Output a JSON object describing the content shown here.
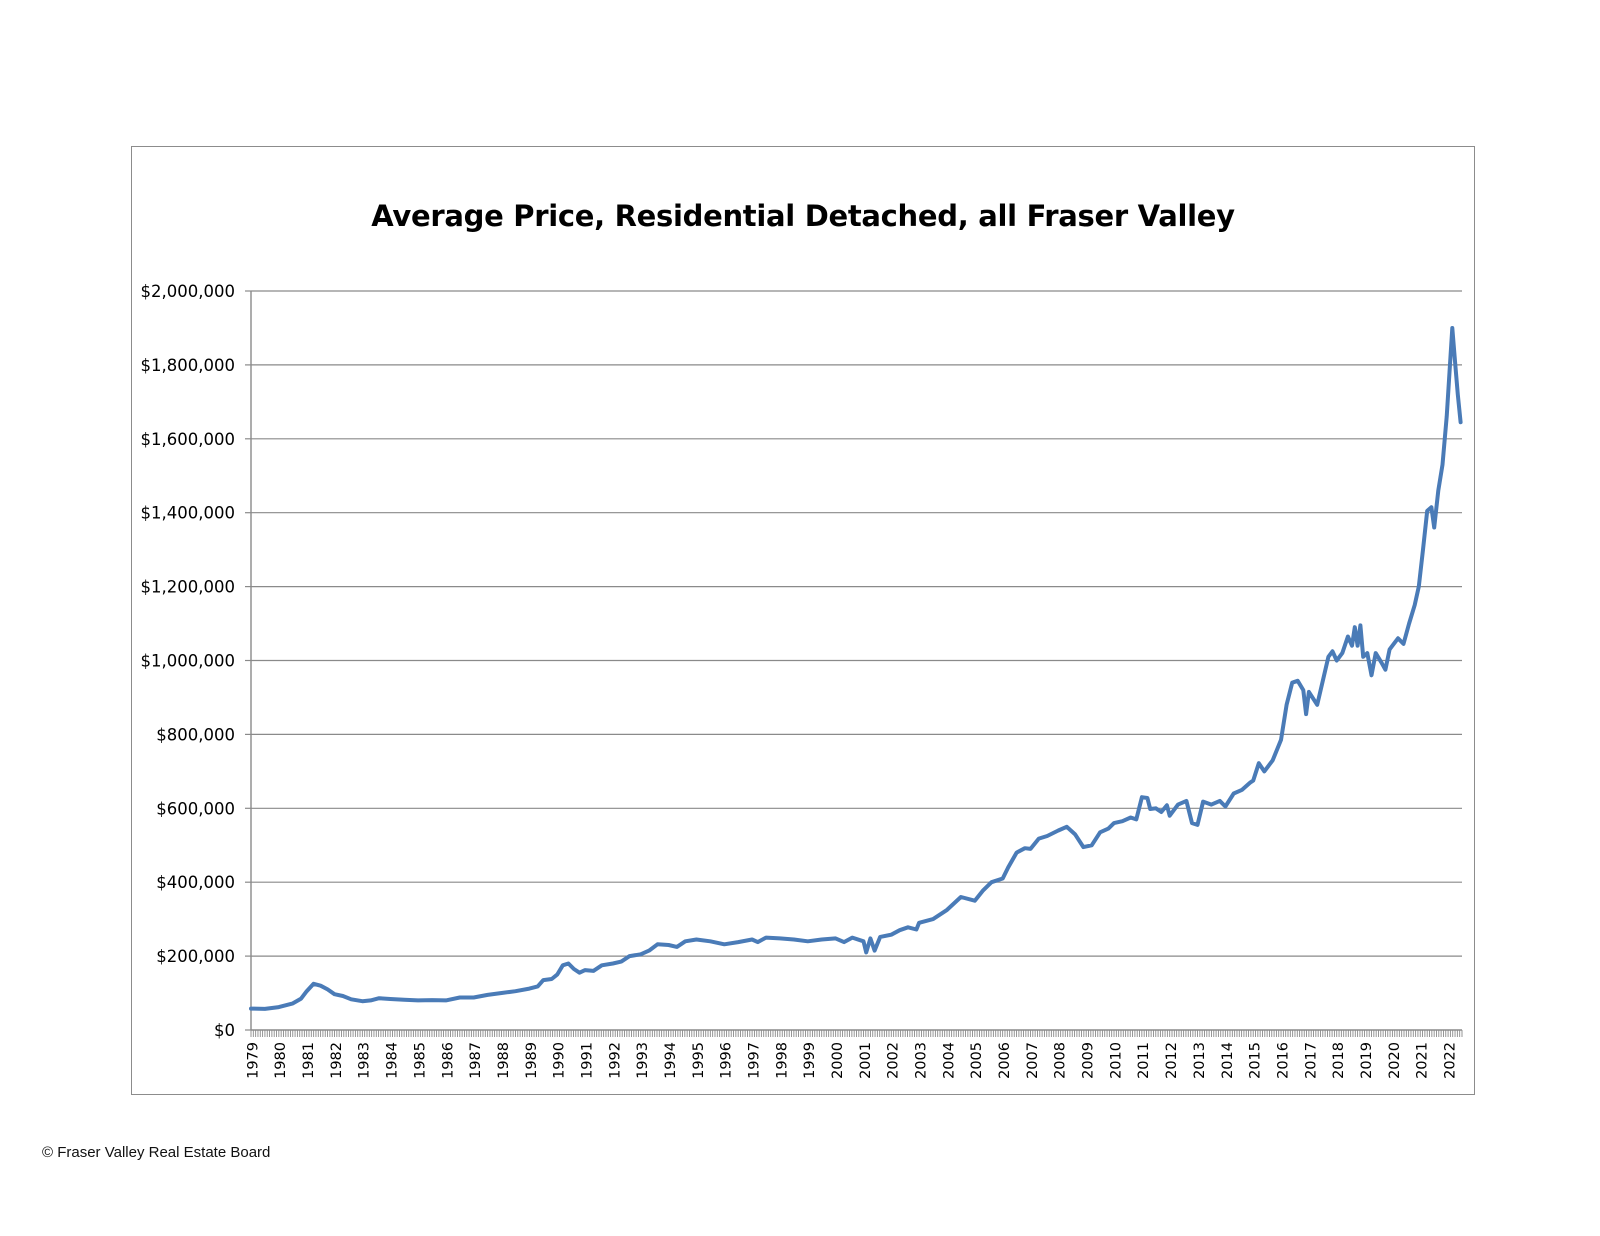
{
  "chart_data": {
    "type": "line",
    "title": "Average Price, Residential Detached, all Fraser Valley",
    "xlabel": "",
    "ylabel": "",
    "ylim": [
      0,
      2000000
    ],
    "grid": true,
    "y_ticks": [
      "$0",
      "$200,000",
      "$400,000",
      "$600,000",
      "$800,000",
      "$1,000,000",
      "$1,200,000",
      "$1,400,000",
      "$1,600,000",
      "$1,800,000",
      "$2,000,000"
    ],
    "x_ticks": [
      "1979",
      "1980",
      "1981",
      "1982",
      "1983",
      "1984",
      "1985",
      "1986",
      "1987",
      "1988",
      "1989",
      "1990",
      "1991",
      "1992",
      "1993",
      "1994",
      "1995",
      "1996",
      "1997",
      "1998",
      "1999",
      "2000",
      "2001",
      "2002",
      "2003",
      "2004",
      "2005",
      "2006",
      "2007",
      "2008",
      "2009",
      "2010",
      "2011",
      "2012",
      "2013",
      "2014",
      "2015",
      "2016",
      "2017",
      "2018",
      "2019",
      "2020",
      "2021",
      "2022"
    ],
    "series_color": "#4a7bb7",
    "series": [
      {
        "name": "",
        "points": [
          [
            "1979.0",
            58000
          ],
          [
            "1979.5",
            57000
          ],
          [
            "1980.0",
            62000
          ],
          [
            "1980.5",
            72000
          ],
          [
            "1980.8",
            85000
          ],
          [
            "1981.0",
            105000
          ],
          [
            "1981.25",
            125000
          ],
          [
            "1981.5",
            120000
          ],
          [
            "1981.75",
            110000
          ],
          [
            "1982.0",
            97000
          ],
          [
            "1982.3",
            92000
          ],
          [
            "1982.6",
            83000
          ],
          [
            "1983.0",
            78000
          ],
          [
            "1983.3",
            80000
          ],
          [
            "1983.6",
            86000
          ],
          [
            "1984.0",
            84000
          ],
          [
            "1984.5",
            82000
          ],
          [
            "1985.0",
            80000
          ],
          [
            "1985.5",
            81000
          ],
          [
            "1986.0",
            80000
          ],
          [
            "1986.5",
            88000
          ],
          [
            "1987.0",
            88000
          ],
          [
            "1987.5",
            95000
          ],
          [
            "1988.0",
            100000
          ],
          [
            "1988.5",
            105000
          ],
          [
            "1989.0",
            112000
          ],
          [
            "1989.3",
            118000
          ],
          [
            "1989.5",
            135000
          ],
          [
            "1989.8",
            138000
          ],
          [
            "1990.0",
            150000
          ],
          [
            "1990.2",
            175000
          ],
          [
            "1990.4",
            180000
          ],
          [
            "1990.6",
            165000
          ],
          [
            "1990.8",
            155000
          ],
          [
            "1991.0",
            162000
          ],
          [
            "1991.3",
            160000
          ],
          [
            "1991.6",
            175000
          ],
          [
            "1992.0",
            180000
          ],
          [
            "1992.3",
            185000
          ],
          [
            "1992.6",
            200000
          ],
          [
            "1993.0",
            205000
          ],
          [
            "1993.3",
            215000
          ],
          [
            "1993.6",
            232000
          ],
          [
            "1994.0",
            230000
          ],
          [
            "1994.3",
            225000
          ],
          [
            "1994.6",
            240000
          ],
          [
            "1995.0",
            245000
          ],
          [
            "1995.5",
            240000
          ],
          [
            "1996.0",
            232000
          ],
          [
            "1996.5",
            238000
          ],
          [
            "1997.0",
            245000
          ],
          [
            "1997.2",
            238000
          ],
          [
            "1997.5",
            250000
          ],
          [
            "1998.0",
            248000
          ],
          [
            "1998.5",
            245000
          ],
          [
            "1999.0",
            240000
          ],
          [
            "1999.5",
            245000
          ],
          [
            "2000.0",
            248000
          ],
          [
            "2000.3",
            238000
          ],
          [
            "2000.6",
            250000
          ],
          [
            "2001.0",
            240000
          ],
          [
            "2001.1",
            210000
          ],
          [
            "2001.25",
            248000
          ],
          [
            "2001.4",
            215000
          ],
          [
            "2001.6",
            252000
          ],
          [
            "2002.0",
            258000
          ],
          [
            "2002.3",
            270000
          ],
          [
            "2002.6",
            278000
          ],
          [
            "2002.9",
            272000
          ],
          [
            "2003.0",
            290000
          ],
          [
            "2003.5",
            300000
          ],
          [
            "2004.0",
            325000
          ],
          [
            "2004.5",
            360000
          ],
          [
            "2005.0",
            350000
          ],
          [
            "2005.3",
            378000
          ],
          [
            "2005.6",
            400000
          ],
          [
            "2006.0",
            410000
          ],
          [
            "2006.2",
            440000
          ],
          [
            "2006.5",
            480000
          ],
          [
            "2006.8",
            492000
          ],
          [
            "2007.0",
            490000
          ],
          [
            "2007.3",
            518000
          ],
          [
            "2007.6",
            525000
          ],
          [
            "2008.0",
            540000
          ],
          [
            "2008.3",
            550000
          ],
          [
            "2008.6",
            530000
          ],
          [
            "2008.9",
            495000
          ],
          [
            "2009.2",
            500000
          ],
          [
            "2009.5",
            535000
          ],
          [
            "2009.8",
            545000
          ],
          [
            "2010.0",
            560000
          ],
          [
            "2010.3",
            565000
          ],
          [
            "2010.6",
            575000
          ],
          [
            "2010.8",
            570000
          ],
          [
            "2011.0",
            630000
          ],
          [
            "2011.2",
            628000
          ],
          [
            "2011.3",
            598000
          ],
          [
            "2011.5",
            600000
          ],
          [
            "2011.7",
            590000
          ],
          [
            "2011.9",
            608000
          ],
          [
            "2012.0",
            580000
          ],
          [
            "2012.3",
            610000
          ],
          [
            "2012.6",
            620000
          ],
          [
            "2012.8",
            560000
          ],
          [
            "2013.0",
            555000
          ],
          [
            "2013.2",
            618000
          ],
          [
            "2013.5",
            610000
          ],
          [
            "2013.8",
            620000
          ],
          [
            "2014.0",
            605000
          ],
          [
            "2014.3",
            640000
          ],
          [
            "2014.6",
            650000
          ],
          [
            "2014.9",
            670000
          ],
          [
            "2015.0",
            675000
          ],
          [
            "2015.2",
            722000
          ],
          [
            "2015.4",
            700000
          ],
          [
            "2015.7",
            730000
          ],
          [
            "2016.0",
            785000
          ],
          [
            "2016.2",
            880000
          ],
          [
            "2016.4",
            940000
          ],
          [
            "2016.6",
            945000
          ],
          [
            "2016.8",
            920000
          ],
          [
            "2016.9",
            855000
          ],
          [
            "2017.0",
            915000
          ],
          [
            "2017.3",
            880000
          ],
          [
            "2017.5",
            945000
          ],
          [
            "2017.7",
            1010000
          ],
          [
            "2017.85",
            1025000
          ],
          [
            "2018.0",
            1000000
          ],
          [
            "2018.2",
            1020000
          ],
          [
            "2018.4",
            1065000
          ],
          [
            "2018.55",
            1040000
          ],
          [
            "2018.65",
            1090000
          ],
          [
            "2018.75",
            1040000
          ],
          [
            "2018.85",
            1095000
          ],
          [
            "2018.95",
            1010000
          ],
          [
            "2019.1",
            1020000
          ],
          [
            "2019.25",
            960000
          ],
          [
            "2019.4",
            1020000
          ],
          [
            "2019.6",
            995000
          ],
          [
            "2019.75",
            975000
          ],
          [
            "2019.9",
            1030000
          ],
          [
            "2020.0",
            1040000
          ],
          [
            "2020.2",
            1060000
          ],
          [
            "2020.4",
            1045000
          ],
          [
            "2020.6",
            1100000
          ],
          [
            "2020.8",
            1150000
          ],
          [
            "2020.95",
            1200000
          ],
          [
            "2021.1",
            1300000
          ],
          [
            "2021.25",
            1405000
          ],
          [
            "2021.4",
            1415000
          ],
          [
            "2021.5",
            1360000
          ],
          [
            "2021.65",
            1460000
          ],
          [
            "2021.8",
            1530000
          ],
          [
            "2021.95",
            1660000
          ],
          [
            "2022.05",
            1780000
          ],
          [
            "2022.15",
            1900000
          ],
          [
            "2022.25",
            1810000
          ],
          [
            "2022.35",
            1720000
          ],
          [
            "2022.45",
            1645000
          ]
        ]
      }
    ]
  },
  "footer": {
    "copyright": "© Fraser Valley Real Estate Board"
  }
}
